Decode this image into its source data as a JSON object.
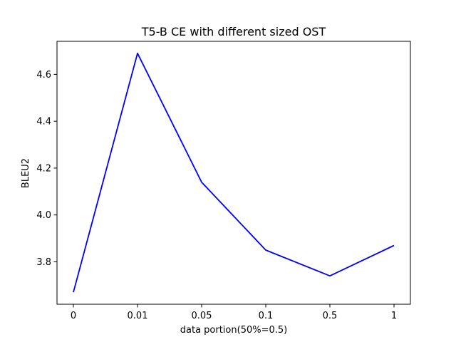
{
  "chart_data": {
    "type": "line",
    "title": "T5-B CE with different sized OST",
    "xlabel": "data portion(50%=0.5)",
    "ylabel": "BLEU2",
    "categories": [
      "0",
      "0.01",
      "0.05",
      "0.1",
      "0.5",
      "1"
    ],
    "series": [
      {
        "color": "#0000ff",
        "values": [
          3.67,
          4.69,
          4.14,
          3.85,
          3.74,
          3.87
        ]
      }
    ],
    "ylim": [
      3.619,
      4.741
    ],
    "yticks": [
      3.8,
      4.0,
      4.2,
      4.4,
      4.6
    ],
    "ytick_labels": [
      "3.8",
      "4.0",
      "4.2",
      "4.4",
      "4.6"
    ],
    "grid": false,
    "legend": "none"
  }
}
